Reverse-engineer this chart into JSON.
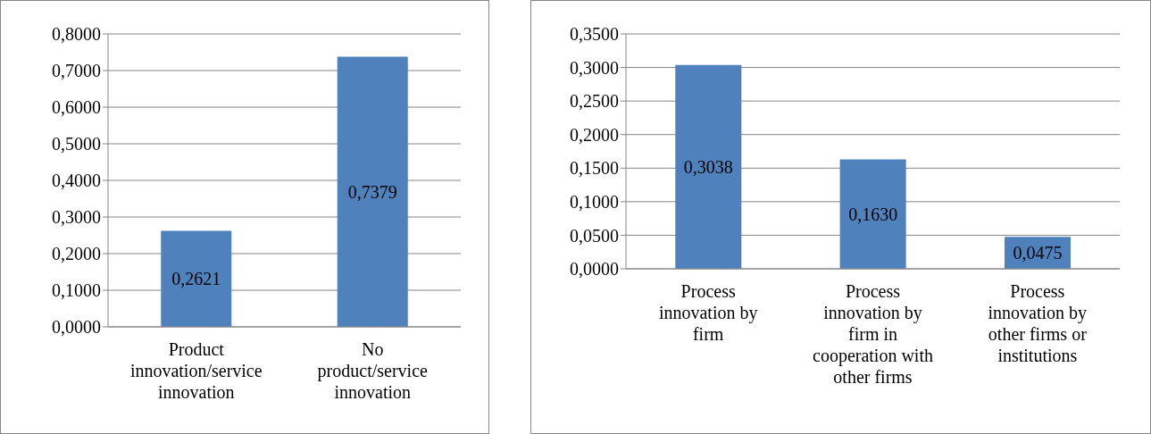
{
  "chart_data": [
    {
      "type": "bar",
      "categories": [
        "Product innovation/service innovation",
        "No product/service innovation"
      ],
      "values": [
        0.2621,
        0.7379
      ],
      "value_labels": [
        "0,2621",
        "0,7379"
      ],
      "color": "#4f81bd",
      "ylim": [
        0,
        0.8
      ],
      "yticks": [
        {
          "value": 0,
          "label": "0,0000"
        },
        {
          "value": 0.1,
          "label": "0,1000"
        },
        {
          "value": 0.2,
          "label": "0,2000"
        },
        {
          "value": 0.3,
          "label": "0,3000"
        },
        {
          "value": 0.4,
          "label": "0,4000"
        },
        {
          "value": 0.5,
          "label": "0,5000"
        },
        {
          "value": 0.6,
          "label": "0,6000"
        },
        {
          "value": 0.7,
          "label": "0,7000"
        },
        {
          "value": 0.8,
          "label": "0,8000"
        }
      ],
      "grid": "y"
    },
    {
      "type": "bar",
      "categories": [
        "Process innovation by firm",
        "Process innovation by firm in cooperation with other firms",
        "Process innovation by other firms or institutions"
      ],
      "values": [
        0.3038,
        0.163,
        0.0475
      ],
      "value_labels": [
        "0,3038",
        "0,1630",
        "0,0475"
      ],
      "color": "#4f81bd",
      "ylim": [
        0,
        0.35
      ],
      "yticks": [
        {
          "value": 0,
          "label": "0,0000"
        },
        {
          "value": 0.05,
          "label": "0,0500"
        },
        {
          "value": 0.1,
          "label": "0,1000"
        },
        {
          "value": 0.15,
          "label": "0,1500"
        },
        {
          "value": 0.2,
          "label": "0,2000"
        },
        {
          "value": 0.25,
          "label": "0,2500"
        },
        {
          "value": 0.3,
          "label": "0,3000"
        },
        {
          "value": 0.35,
          "label": "0,3500"
        }
      ],
      "grid": "y"
    }
  ]
}
